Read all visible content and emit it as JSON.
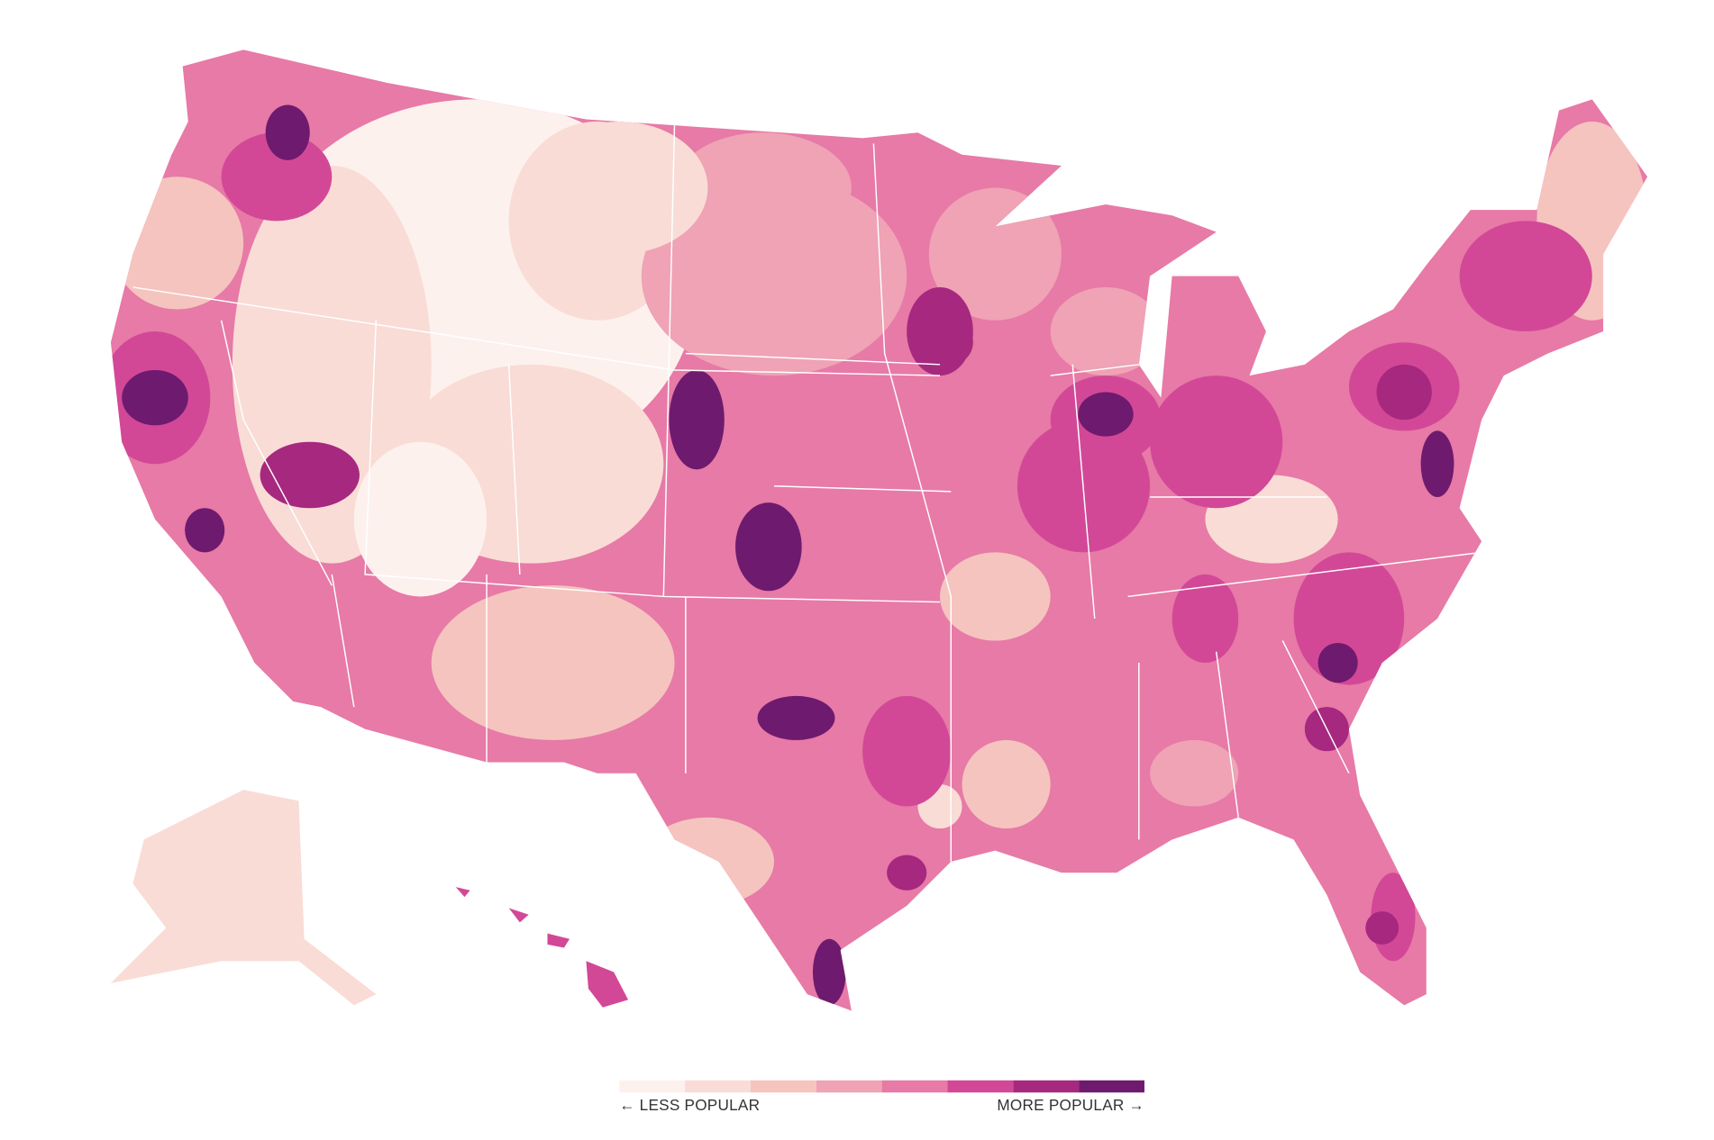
{
  "legend": {
    "colors": [
      "#fdf1ee",
      "#f9dcd6",
      "#f5c4bf",
      "#efa3b5",
      "#e77aa6",
      "#d24897",
      "#a6287f",
      "#6e1a6f"
    ],
    "low_label": "← LESS POPULAR",
    "high_label": "MORE POPULAR →"
  }
}
